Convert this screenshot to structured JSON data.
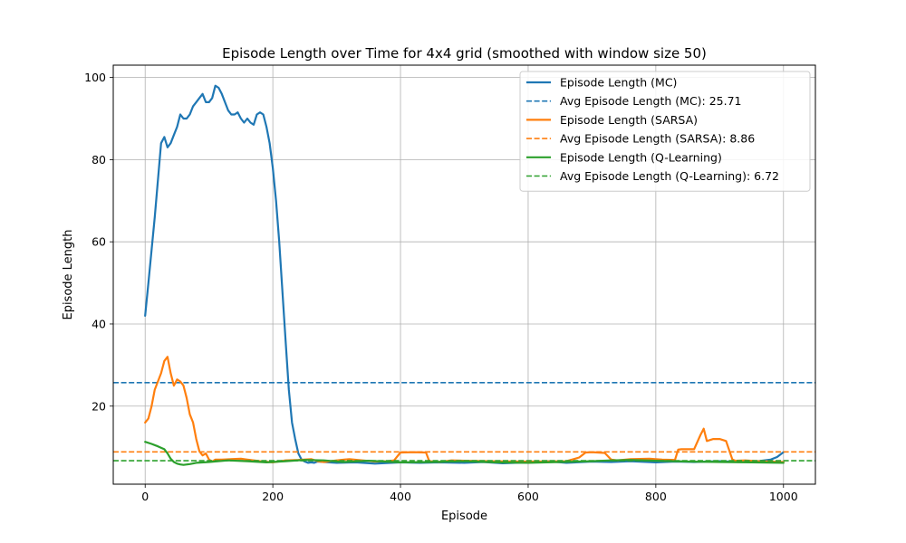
{
  "chart_data": {
    "type": "line",
    "title": "Episode Length over Time for 4x4 grid (smoothed with window size 50)",
    "xlabel": "Episode",
    "ylabel": "Episode Length",
    "xlim": [
      -50,
      1050
    ],
    "ylim": [
      1,
      103
    ],
    "xticks": [
      0,
      200,
      400,
      600,
      800,
      1000
    ],
    "yticks": [
      20,
      40,
      60,
      80,
      100
    ],
    "grid": true,
    "legend_position": "top-right",
    "series": [
      {
        "name": "Episode Length (MC)",
        "color": "#1f77b4",
        "style": "solid",
        "x": [
          0,
          5,
          10,
          15,
          20,
          25,
          30,
          35,
          40,
          45,
          50,
          55,
          60,
          65,
          70,
          75,
          80,
          85,
          90,
          95,
          100,
          105,
          110,
          115,
          120,
          125,
          130,
          135,
          140,
          145,
          150,
          155,
          160,
          165,
          170,
          175,
          180,
          185,
          190,
          195,
          200,
          205,
          210,
          215,
          220,
          225,
          230,
          235,
          240,
          245,
          250,
          255,
          260,
          265,
          270,
          280,
          300,
          330,
          360,
          400,
          430,
          460,
          500,
          530,
          560,
          600,
          630,
          660,
          700,
          730,
          760,
          800,
          830,
          860,
          900,
          930,
          960,
          980,
          990,
          1000
        ],
        "values": [
          42,
          50,
          58,
          66,
          75,
          84,
          85.5,
          83,
          84,
          86,
          88,
          91,
          90,
          90,
          91,
          93,
          94,
          95,
          96,
          94,
          94,
          95,
          98,
          97.5,
          96,
          94,
          92,
          91,
          91,
          91.5,
          90,
          89,
          90,
          89,
          88.5,
          91,
          91.5,
          91,
          88,
          84,
          78,
          70,
          60,
          48,
          36,
          24,
          16,
          12,
          8.5,
          7,
          6.5,
          6.2,
          6.3,
          6.2,
          6.5,
          6.4,
          6.2,
          6.3,
          6.0,
          6.3,
          6.2,
          6.3,
          6.2,
          6.4,
          6.1,
          6.3,
          6.6,
          6.2,
          6.5,
          6.4,
          6.6,
          6.3,
          6.5,
          6.4,
          6.6,
          6.4,
          6.6,
          7.0,
          7.6,
          8.8
        ]
      },
      {
        "name": "Avg Episode Length (MC): 25.71",
        "color": "#1f77b4",
        "style": "dashed",
        "constant": 25.71
      },
      {
        "name": "Episode Length (SARSA)",
        "color": "#ff7f0e",
        "style": "solid",
        "x": [
          0,
          5,
          10,
          15,
          20,
          25,
          30,
          35,
          40,
          45,
          50,
          55,
          60,
          65,
          70,
          75,
          80,
          85,
          90,
          95,
          100,
          105,
          110,
          120,
          150,
          160,
          180,
          200,
          220,
          240,
          260,
          270,
          280,
          300,
          320,
          340,
          360,
          380,
          390,
          400,
          420,
          440,
          445,
          460,
          480,
          500,
          540,
          580,
          620,
          660,
          680,
          690,
          700,
          720,
          730,
          740,
          760,
          790,
          810,
          830,
          835,
          840,
          860,
          870,
          875,
          880,
          890,
          900,
          910,
          920,
          925,
          940,
          960,
          1000
        ],
        "values": [
          16,
          17,
          20,
          24,
          26,
          28,
          31,
          32,
          28,
          25,
          26.5,
          26,
          25,
          22,
          18,
          16,
          12,
          9,
          8,
          8.5,
          7,
          6.5,
          7,
          7,
          7.2,
          7,
          6.6,
          6.3,
          6.8,
          6.9,
          7.1,
          6.6,
          6.4,
          6.8,
          7.1,
          6.8,
          6.5,
          6.6,
          6.8,
          8.7,
          8.8,
          8.7,
          6.6,
          6.4,
          6.8,
          6.7,
          6.6,
          6.5,
          6.5,
          6.6,
          7.5,
          8.7,
          8.8,
          8.6,
          7.0,
          6.8,
          7.1,
          7.2,
          7.0,
          6.9,
          9.4,
          9.5,
          9.5,
          13,
          14.5,
          11.5,
          12,
          12,
          11.5,
          7,
          6.7,
          6.8,
          6.6,
          6.4
        ]
      },
      {
        "name": "Avg Episode Length (SARSA): 8.86",
        "color": "#ff7f0e",
        "style": "dashed",
        "constant": 8.86
      },
      {
        "name": "Episode Length (Q-Learning)",
        "color": "#2ca02c",
        "style": "solid",
        "x": [
          0,
          10,
          20,
          30,
          35,
          40,
          45,
          50,
          55,
          60,
          70,
          80,
          100,
          130,
          160,
          190,
          220,
          250,
          280,
          310,
          350,
          400,
          450,
          500,
          550,
          600,
          650,
          700,
          730,
          760,
          800,
          850,
          900,
          950,
          1000
        ],
        "values": [
          11.3,
          10.8,
          10.2,
          9.5,
          8.5,
          7.2,
          6.4,
          6.0,
          5.8,
          5.7,
          5.9,
          6.2,
          6.4,
          6.8,
          6.6,
          6.3,
          6.6,
          6.9,
          6.8,
          6.4,
          6.7,
          6.3,
          6.4,
          6.6,
          6.3,
          6.2,
          6.4,
          6.6,
          6.8,
          6.9,
          6.7,
          6.5,
          6.4,
          6.3,
          6.2
        ]
      },
      {
        "name": "Avg Episode Length (Q-Learning): 6.72",
        "color": "#2ca02c",
        "style": "dashed",
        "constant": 6.72
      }
    ]
  }
}
